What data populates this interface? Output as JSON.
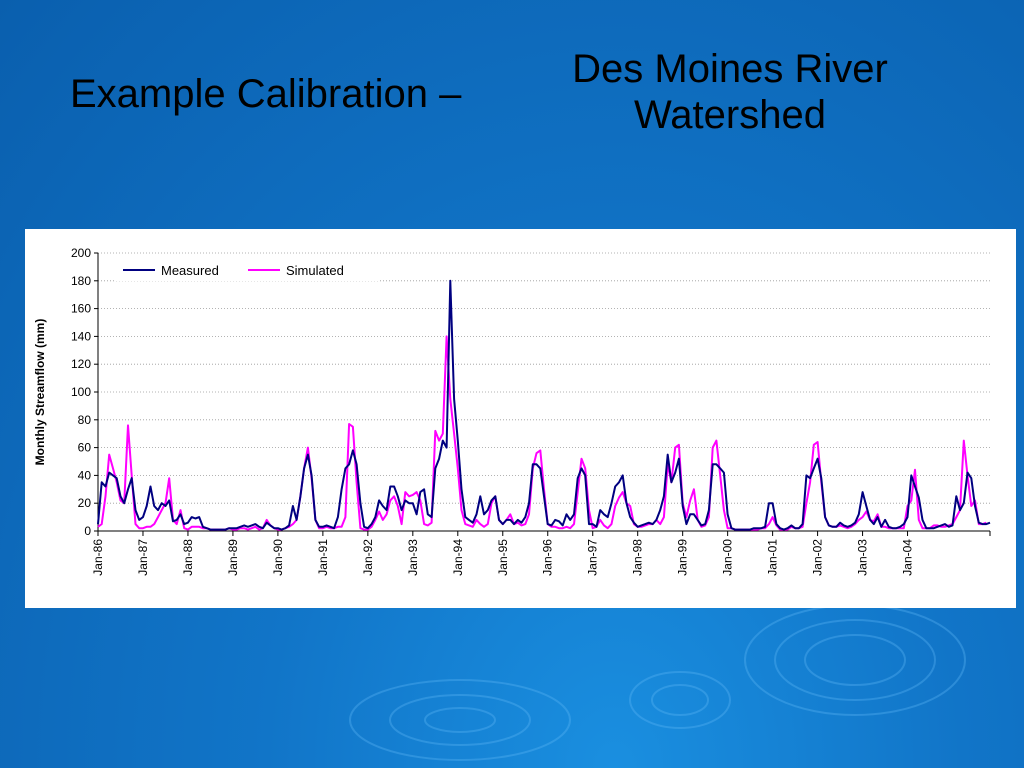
{
  "slide": {
    "title": "Example Calibration –",
    "subtitle_line1": "Des Moines River",
    "subtitle_line2": "Watershed"
  },
  "colors": {
    "measured": "#000080",
    "simulated": "#ff00ff",
    "background": "#1175c8"
  },
  "chart_data": {
    "type": "line",
    "title": "",
    "xlabel": "",
    "ylabel": "Monthly Streamflow (mm)",
    "ylim": [
      0,
      200
    ],
    "yticks": [
      0,
      20,
      40,
      60,
      80,
      100,
      120,
      140,
      160,
      180,
      200
    ],
    "x_tick_labels": [
      "Jan-86",
      "Jan-87",
      "Jan-88",
      "Jan-89",
      "Jan-90",
      "Jan-91",
      "Jan-92",
      "Jan-93",
      "Jan-94",
      "Jan-95",
      "Jan-96",
      "Jan-97",
      "Jan-98",
      "Jan-99",
      "Jan-00",
      "Jan-01",
      "Jan-02",
      "Jan-03",
      "Jan-04"
    ],
    "x_start": "Jan-86",
    "x_interval": "monthly",
    "grid": "horizontal dotted",
    "legend_position": "top-left",
    "series": [
      {
        "name": "Measured",
        "color": "#000080",
        "values": [
          5,
          35,
          32,
          42,
          40,
          38,
          25,
          20,
          30,
          38,
          15,
          8,
          10,
          18,
          32,
          18,
          15,
          20,
          18,
          22,
          7,
          8,
          12,
          5,
          6,
          10,
          9,
          10,
          3,
          2,
          1,
          1,
          1,
          1,
          1,
          2,
          2,
          2,
          3,
          4,
          3,
          4,
          5,
          3,
          2,
          6,
          4,
          2,
          2,
          1,
          2,
          4,
          18,
          8,
          25,
          45,
          55,
          40,
          8,
          3,
          3,
          4,
          3,
          2,
          10,
          30,
          45,
          48,
          58,
          48,
          20,
          3,
          2,
          5,
          10,
          22,
          18,
          15,
          32,
          32,
          25,
          15,
          22,
          20,
          20,
          12,
          28,
          30,
          12,
          10,
          45,
          52,
          65,
          60,
          180,
          95,
          65,
          30,
          10,
          8,
          6,
          12,
          25,
          12,
          15,
          22,
          25,
          8,
          5,
          8,
          8,
          5,
          8,
          6,
          10,
          20,
          48,
          48,
          45,
          25,
          5,
          4,
          8,
          7,
          4,
          12,
          8,
          12,
          38,
          45,
          40,
          5,
          5,
          3,
          15,
          12,
          10,
          20,
          32,
          35,
          40,
          20,
          10,
          6,
          3,
          4,
          5,
          6,
          5,
          8,
          15,
          25,
          55,
          35,
          42,
          52,
          18,
          5,
          12,
          12,
          8,
          4,
          5,
          15,
          48,
          48,
          45,
          42,
          12,
          2,
          1,
          1,
          1,
          1,
          1,
          2,
          2,
          2,
          3,
          20,
          20,
          5,
          2,
          1,
          2,
          4,
          2,
          2,
          5,
          40,
          38,
          45,
          52,
          38,
          10,
          4,
          3,
          3,
          6,
          4,
          3,
          4,
          6,
          12,
          28,
          18,
          8,
          5,
          10,
          3,
          8,
          3,
          2,
          2,
          3,
          5,
          10,
          40,
          32,
          24,
          8,
          2,
          2,
          2,
          3,
          4,
          5,
          3,
          4,
          25,
          15,
          20,
          42,
          38,
          18,
          6,
          5,
          5,
          6
        ]
      },
      {
        "name": "Simulated",
        "color": "#ff00ff",
        "values": [
          3,
          5,
          25,
          55,
          45,
          35,
          22,
          20,
          76,
          40,
          5,
          2,
          2,
          3,
          3,
          5,
          10,
          15,
          20,
          38,
          8,
          5,
          15,
          2,
          1,
          3,
          3,
          3,
          2,
          2,
          1,
          1,
          1,
          1,
          1,
          2,
          1,
          1,
          2,
          2,
          1,
          2,
          3,
          1,
          2,
          8,
          4,
          2,
          1,
          1,
          2,
          3,
          5,
          8,
          25,
          45,
          60,
          38,
          8,
          2,
          2,
          3,
          2,
          2,
          3,
          3,
          10,
          77,
          75,
          35,
          2,
          1,
          1,
          3,
          8,
          14,
          8,
          12,
          22,
          25,
          18,
          5,
          28,
          25,
          26,
          28,
          22,
          5,
          4,
          6,
          72,
          65,
          70,
          140,
          95,
          70,
          45,
          15,
          5,
          4,
          3,
          8,
          5,
          3,
          5,
          20,
          25,
          8,
          5,
          8,
          12,
          5,
          6,
          4,
          5,
          12,
          45,
          56,
          58,
          30,
          5,
          3,
          3,
          2,
          2,
          3,
          2,
          5,
          28,
          52,
          45,
          15,
          2,
          3,
          8,
          4,
          2,
          5,
          18,
          24,
          28,
          20,
          18,
          5,
          3,
          3,
          4,
          5,
          5,
          8,
          5,
          10,
          48,
          35,
          60,
          62,
          20,
          10,
          22,
          30,
          8,
          3,
          4,
          10,
          60,
          65,
          40,
          15,
          2,
          2,
          1,
          1,
          1,
          1,
          1,
          1,
          1,
          2,
          2,
          5,
          10,
          4,
          1,
          1,
          1,
          3,
          2,
          2,
          3,
          20,
          35,
          62,
          64,
          35,
          10,
          4,
          3,
          3,
          4,
          3,
          2,
          3,
          5,
          8,
          10,
          14,
          8,
          7,
          12,
          3,
          3,
          2,
          2,
          2,
          2,
          2,
          18,
          22,
          44,
          8,
          2,
          2,
          2,
          4,
          4,
          3,
          3,
          4,
          5,
          10,
          15,
          65,
          40,
          18,
          22,
          5,
          5,
          6
        ]
      }
    ]
  }
}
